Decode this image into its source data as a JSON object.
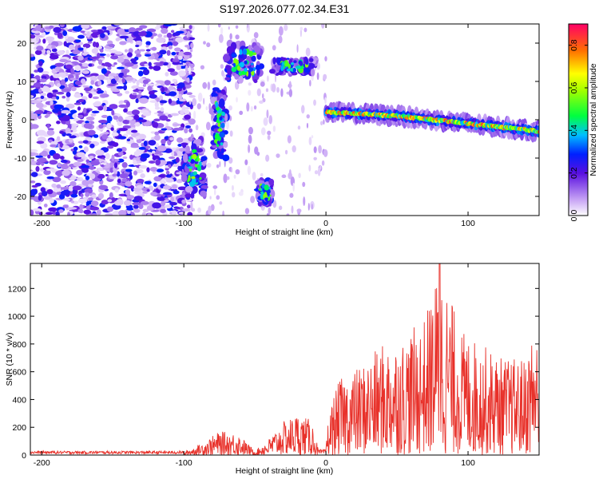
{
  "title": "S197.2026.077.02.34.E31",
  "chart_data": [
    {
      "type": "heatmap",
      "name": "spectrogram",
      "xlabel": "Height of straight line (km)",
      "ylabel": "Frequency (Hz)",
      "xlim": [
        -208,
        150
      ],
      "ylim": [
        -25,
        25
      ],
      "xticks": [
        -200,
        -100,
        0,
        100
      ],
      "xtick_labels": [
        "-200",
        "-100",
        "0",
        "100"
      ],
      "yticks": [
        -20,
        -10,
        0,
        10,
        20
      ],
      "ytick_labels": [
        "-20",
        "-10",
        "0",
        "10",
        "20"
      ],
      "colorbar": {
        "label": "Normalized spectral amplitude",
        "range": [
          0,
          0.9
        ],
        "ticks": [
          0,
          0.2,
          0.4,
          0.6,
          0.8
        ],
        "tick_labels": [
          "0.0",
          "0.2",
          "0.4",
          "0.6",
          "0.8"
        ]
      },
      "features": [
        {
          "name": "noise-field",
          "x_range": [
            -208,
            -100
          ],
          "freq_range": [
            -25,
            25
          ],
          "amplitude": 0.3
        },
        {
          "name": "burst-1",
          "x_range": [
            -100,
            -85
          ],
          "freq_range": [
            -20,
            -5
          ],
          "amplitude": 0.5
        },
        {
          "name": "burst-2",
          "x_range": [
            -80,
            -70
          ],
          "freq_range": [
            -10,
            8
          ],
          "amplitude": 0.5
        },
        {
          "name": "burst-3",
          "x_range": [
            -70,
            -45
          ],
          "freq_range": [
            10,
            20
          ],
          "amplitude": 0.5
        },
        {
          "name": "burst-4",
          "x_range": [
            -48,
            -38
          ],
          "freq_range": [
            -22,
            -16
          ],
          "amplitude": 0.5
        },
        {
          "name": "burst-5",
          "x_range": [
            -38,
            -5
          ],
          "freq_range": [
            12,
            16
          ],
          "amplitude": 0.5
        },
        {
          "name": "main-trace",
          "x": [
            0,
            50,
            100,
            150
          ],
          "freq": [
            2,
            1,
            -1,
            -3
          ],
          "amplitude": 0.9
        }
      ]
    },
    {
      "type": "line",
      "name": "snr",
      "xlabel": "Height of straight line (km)",
      "ylabel": "SNR (10 * v/v)",
      "xlim": [
        -208,
        150
      ],
      "ylim": [
        0,
        1380
      ],
      "xticks": [
        -200,
        -100,
        0,
        100
      ],
      "xtick_labels": [
        "-200",
        "-100",
        "0",
        "100"
      ],
      "yticks": [
        0,
        200,
        400,
        600,
        800,
        1000,
        1200
      ],
      "ytick_labels": [
        "0",
        "200",
        "400",
        "600",
        "800",
        "1000",
        "1200"
      ],
      "color": "#e8312a",
      "envelope": {
        "x": [
          -208,
          -100,
          -90,
          -75,
          -62,
          -50,
          -40,
          -30,
          -20,
          -10,
          -5,
          0,
          5,
          10,
          25,
          40,
          55,
          70,
          80,
          95,
          110,
          125,
          140,
          148,
          150
        ],
        "max": [
          25,
          25,
          70,
          170,
          160,
          30,
          120,
          240,
          300,
          250,
          30,
          160,
          420,
          550,
          650,
          800,
          850,
          1000,
          1380,
          900,
          800,
          700,
          700,
          1000,
          250
        ]
      }
    }
  ]
}
